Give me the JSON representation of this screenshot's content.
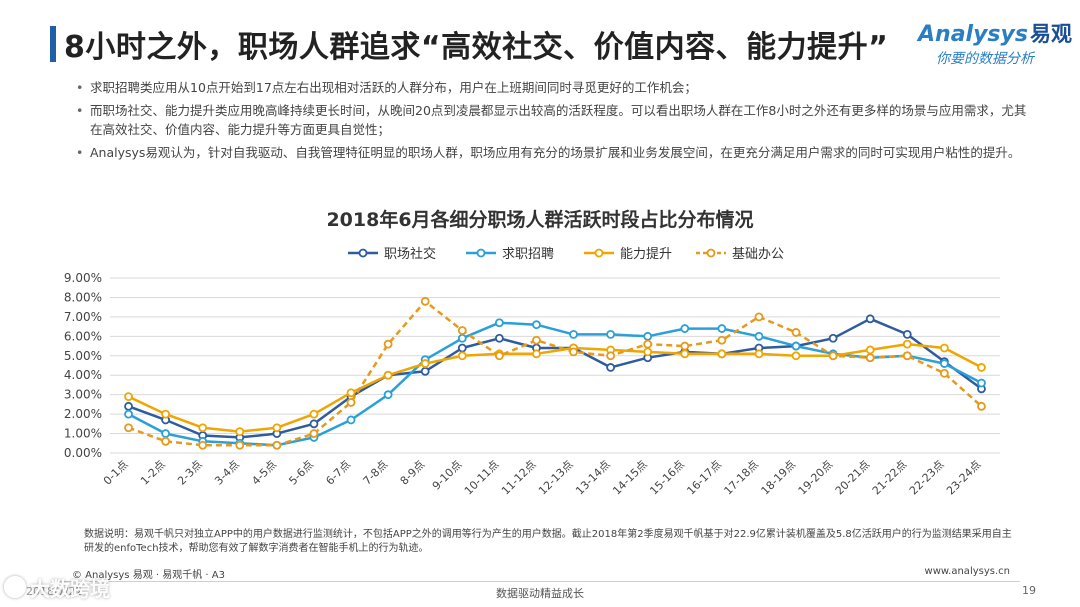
{
  "header": {
    "title": "8小时之外，职场人群追求“高效社交、价值内容、能力提升”",
    "logo_brand": "nalysys",
    "logo_brand_initial": "A",
    "logo_brand_cn": "易观",
    "logo_tagline": "你要的数据分析"
  },
  "bullets": [
    "求职招聘类应用从10点开始到17点左右出现相对活跃的人群分布，用户在上班期间同时寻觅更好的工作机会；",
    "而职场社交、能力提升类应用晚高峰持续更长时间，从晚间20点到凌晨都显示出较高的活跃程度。可以看出职场人群在工作8小时之外还有更多样的场景与应用需求，尤其在高效社交、价值内容、能力提升等方面更具自觉性；",
    "Analysys易观认为，针对自我驱动、自我管理特征明显的职场人群，职场应用有充分的场景扩展和业务发展空间，在更充分满足用户需求的同时可实现用户粘性的提升。"
  ],
  "chart_data": {
    "type": "line",
    "title": "2018年6月各细分职场人群活跃时段占比分布情况",
    "xlabel": "",
    "ylabel": "",
    "ylim": [
      0,
      9
    ],
    "yticks": [
      "0.00%",
      "1.00%",
      "2.00%",
      "3.00%",
      "4.00%",
      "5.00%",
      "6.00%",
      "7.00%",
      "8.00%",
      "9.00%"
    ],
    "grid": true,
    "legend_position": "top",
    "categories": [
      "0-1点",
      "1-2点",
      "2-3点",
      "3-4点",
      "4-5点",
      "5-6点",
      "6-7点",
      "7-8点",
      "8-9点",
      "9-10点",
      "10-11点",
      "11-12点",
      "12-13点",
      "13-14点",
      "14-15点",
      "15-16点",
      "16-17点",
      "17-18点",
      "18-19点",
      "19-20点",
      "20-21点",
      "21-22点",
      "22-23点",
      "23-24点"
    ],
    "series": [
      {
        "name": "职场社交",
        "color": "#2e5c9e",
        "dashed": false,
        "values": [
          2.4,
          1.7,
          0.9,
          0.8,
          1.0,
          1.5,
          2.9,
          4.0,
          4.2,
          5.4,
          5.9,
          5.4,
          5.4,
          4.4,
          4.9,
          5.2,
          5.1,
          5.4,
          5.5,
          5.9,
          6.9,
          6.1,
          4.7,
          3.3
        ]
      },
      {
        "name": "求职招聘",
        "color": "#2aa0d8",
        "dashed": false,
        "values": [
          2.0,
          1.0,
          0.6,
          0.5,
          0.4,
          0.8,
          1.7,
          3.0,
          4.8,
          5.9,
          6.7,
          6.6,
          6.1,
          6.1,
          6.0,
          6.4,
          6.4,
          6.0,
          5.5,
          5.1,
          4.9,
          5.0,
          4.6,
          3.6
        ]
      },
      {
        "name": "能力提升",
        "color": "#f0a500",
        "dashed": false,
        "values": [
          2.9,
          2.0,
          1.3,
          1.1,
          1.3,
          2.0,
          3.1,
          4.0,
          4.6,
          5.0,
          5.1,
          5.1,
          5.4,
          5.3,
          5.2,
          5.1,
          5.1,
          5.1,
          5.0,
          5.0,
          5.3,
          5.6,
          5.4,
          4.4
        ]
      },
      {
        "name": "基础办公",
        "color": "#e69a1a",
        "dashed": true,
        "values": [
          1.3,
          0.6,
          0.4,
          0.4,
          0.4,
          1.0,
          2.6,
          5.6,
          7.8,
          6.3,
          5.0,
          5.8,
          5.2,
          5.0,
          5.6,
          5.5,
          5.8,
          7.0,
          6.2,
          5.0,
          4.9,
          5.0,
          4.1,
          2.4
        ]
      }
    ]
  },
  "note": "数据说明：易观千帆只对独立APP中的用户数据进行监测统计，不包括APP之外的调用等行为产生的用户数据。截止2018年第2季度易观千帆基于对22.9亿累计装机覆盖及5.8亿活跃用户的行为监测结果采用自主研发的enfoTech技术，帮助您有效了解数字消费者在智能手机上的行为轨迹。",
  "footer": {
    "copyright": "© Analysys 易观 · 易观千帆 · A3",
    "website": "www.analysys.cn",
    "date": "2018/7/22",
    "slogan": "数据驱动精益成长",
    "page_number": "19",
    "watermark": "大数跨境"
  },
  "colors": {
    "title_accent": "#1f5fa8",
    "brand_blue": "#2a7fc4",
    "grid": "#d9d9d9"
  }
}
